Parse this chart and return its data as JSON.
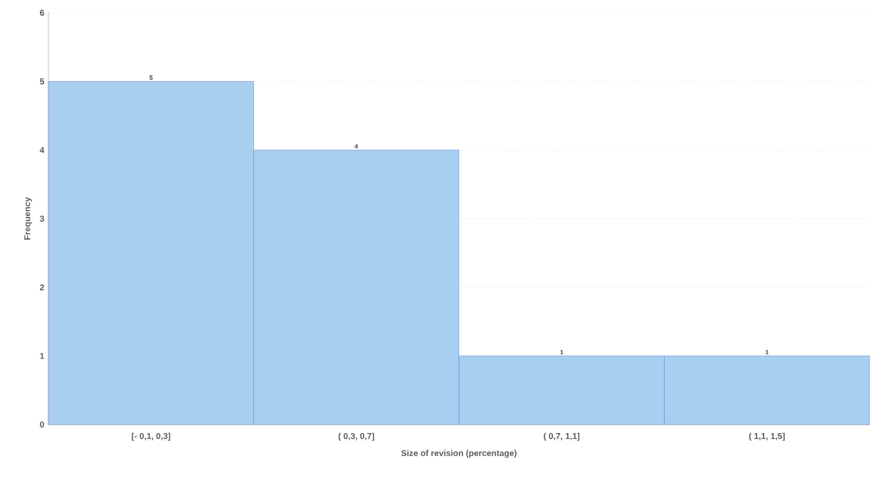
{
  "chart_data": {
    "type": "bar",
    "xlabel": "Size of revision (percentage)",
    "ylabel": "Frequency",
    "categories": [
      "[- 0,1,  0,3]",
      "( 0,3,  0,7]",
      "( 0,7,  1,1]",
      "( 1,1,  1,5]"
    ],
    "values": [
      5,
      4,
      1,
      1
    ],
    "color": "#a9cff0",
    "ylim": [
      0,
      6
    ],
    "yticks": [
      0,
      1,
      2,
      3,
      4,
      5,
      6
    ],
    "grid": "y",
    "data_labels": true
  }
}
